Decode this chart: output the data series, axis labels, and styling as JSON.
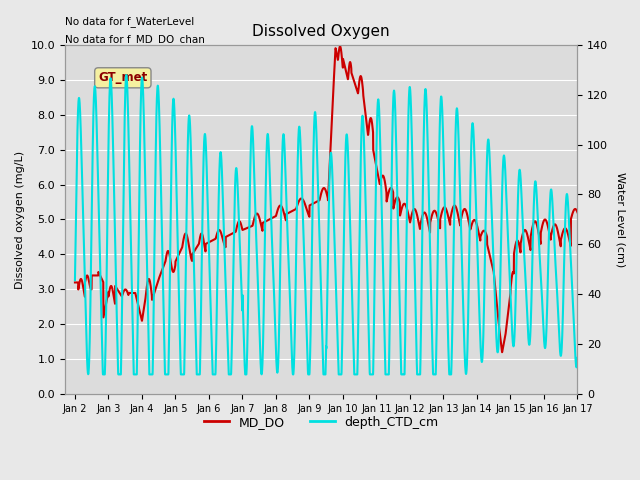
{
  "title": "Dissolved Oxygen",
  "ylabel_left": "Dissolved oxygen (mg/L)",
  "ylabel_right": "Water Level (cm)",
  "text_no_data_1": "No data for f_WaterLevel",
  "text_no_data_2": "No data for f_MD_DO_chan",
  "legend_box_label": "GT_met",
  "xlim_start": 1.7,
  "xlim_end": 17.0,
  "ylim_left": [
    0.0,
    10.0
  ],
  "ylim_right": [
    0,
    140
  ],
  "xtick_labels": [
    "Jan 2",
    "Jan 3",
    "Jan 4",
    "Jan 5",
    "Jan 6",
    "Jan 7",
    "Jan 8",
    "Jan 9",
    "Jan 10",
    "Jan 11",
    "Jan 12",
    "Jan 13",
    "Jan 14",
    "Jan 15",
    "Jan 16",
    "Jan 17"
  ],
  "xtick_positions": [
    2,
    3,
    4,
    5,
    6,
    7,
    8,
    9,
    10,
    11,
    12,
    13,
    14,
    15,
    16,
    17
  ],
  "ytick_left": [
    0.0,
    1.0,
    2.0,
    3.0,
    4.0,
    5.0,
    6.0,
    7.0,
    8.0,
    9.0,
    10.0
  ],
  "ytick_right": [
    0,
    20,
    40,
    60,
    80,
    100,
    120,
    140
  ],
  "fig_bg_color": "#e8e8e8",
  "plot_bg_color": "#dcdcdc",
  "grid_color": "#ffffff",
  "md_do_color": "#cc0000",
  "ctd_color": "#00e0e0",
  "md_do_lw": 1.5,
  "ctd_lw": 1.5,
  "legend_label_do": "MD_DO",
  "legend_label_ctd": "depth_CTD_cm",
  "figsize": [
    6.4,
    4.8
  ],
  "dpi": 100
}
